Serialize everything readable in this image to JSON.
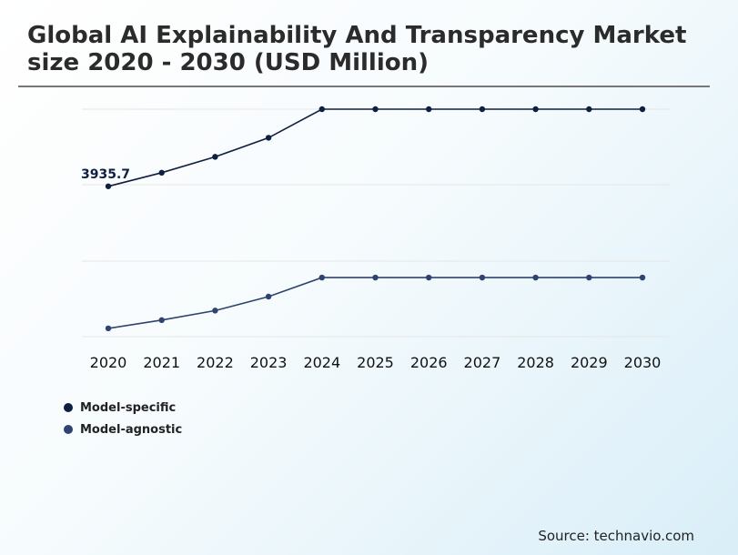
{
  "title_line1": "Global AI Explainability And Transparency Market",
  "title_line2": "size 2020 - 2030 (USD Million)",
  "source": "Source: technavio.com",
  "chart_data": {
    "type": "line",
    "x": [
      "2020",
      "2021",
      "2022",
      "2023",
      "2024",
      "2025",
      "2026",
      "2027",
      "2028",
      "2029",
      "2030"
    ],
    "series": [
      {
        "name": "Model-specific",
        "color": "#0f1f40",
        "values": [
          3935.7,
          4150,
          4400,
          4700,
          5150,
          5150,
          5150,
          5150,
          5150,
          5150,
          5150
        ],
        "labels": {
          "0": "3935.7"
        }
      },
      {
        "name": "Model-agnostic",
        "color": "#2e4370",
        "values": [
          1700,
          1830,
          1980,
          2200,
          2500,
          2500,
          2500,
          2500,
          2500,
          2500,
          2500
        ]
      }
    ],
    "ylim": [
      1570,
      5150
    ],
    "grid": true,
    "legend": "bottom-left"
  }
}
